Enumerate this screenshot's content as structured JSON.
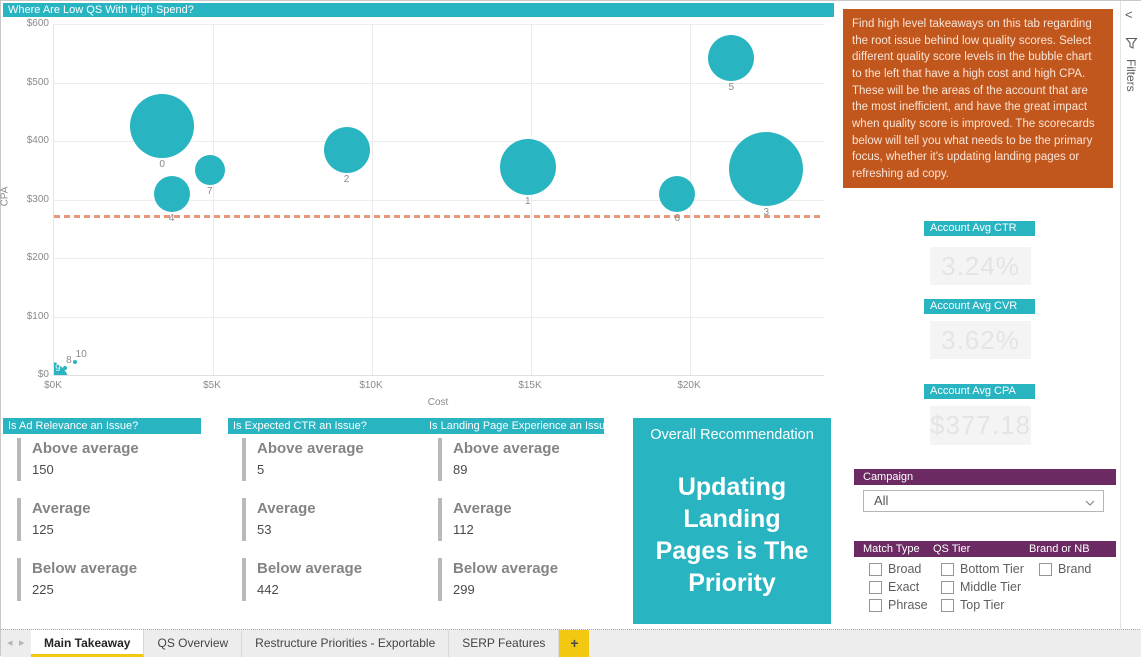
{
  "colors": {
    "teal": "#29b4c2",
    "orange": "#c2571e",
    "purple": "#6b2a61",
    "yellow": "#f2c811",
    "avg_line_salmon": "#e9977b"
  },
  "chart_data": {
    "type": "bubble",
    "title": "Where Are Low QS With High Spend?",
    "xlabel": "Cost",
    "ylabel": "CPA",
    "x_range_k": [
      0,
      24.2
    ],
    "y_range": [
      0,
      600
    ],
    "x_ticks": [
      {
        "v": 0,
        "label": "$0K"
      },
      {
        "v": 5,
        "label": "$5K"
      },
      {
        "v": 10,
        "label": "$10K"
      },
      {
        "v": 15,
        "label": "$15K"
      },
      {
        "v": 20,
        "label": "$20K"
      }
    ],
    "y_ticks": [
      {
        "v": 0,
        "label": "$0"
      },
      {
        "v": 100,
        "label": "$100"
      },
      {
        "v": 200,
        "label": "$200"
      },
      {
        "v": 300,
        "label": "$300"
      },
      {
        "v": 400,
        "label": "$400"
      },
      {
        "v": 500,
        "label": "$500"
      },
      {
        "v": 600,
        "label": "$600"
      }
    ],
    "avg_cpa_line": 273,
    "grid": true,
    "points": [
      {
        "qs": "0",
        "cost_k": 3.4,
        "cpa": 426,
        "r": 32
      },
      {
        "qs": "7",
        "cost_k": 4.9,
        "cpa": 350,
        "r": 15
      },
      {
        "qs": "4",
        "cost_k": 3.7,
        "cpa": 309,
        "r": 18
      },
      {
        "qs": "2",
        "cost_k": 9.2,
        "cpa": 385,
        "r": 23
      },
      {
        "qs": "1",
        "cost_k": 14.9,
        "cpa": 356,
        "r": 28
      },
      {
        "qs": "6",
        "cost_k": 19.6,
        "cpa": 309,
        "r": 18
      },
      {
        "qs": "3",
        "cost_k": 22.4,
        "cpa": 352,
        "r": 37
      },
      {
        "qs": "5",
        "cost_k": 21.3,
        "cpa": 542,
        "r": 23
      },
      {
        "qs": "9",
        "cost_k": 0.1,
        "cpa": 3,
        "r": 13,
        "label_inside": true,
        "quarter": true
      },
      {
        "qs": "8",
        "cost_k": 0.35,
        "cpa": 12,
        "r": 2,
        "label_pos": "right"
      },
      {
        "qs": "10",
        "cost_k": 0.65,
        "cpa": 22,
        "r": 2,
        "label_pos": "right"
      }
    ]
  },
  "info_box": {
    "text": "Find high level takeaways on this tab regarding the root issue behind low quality scores. Select different quality score levels in the bubble chart to the left that have a high cost and high CPA. These will be the areas of the account that are the most inefficient, and have the great impact when quality score is improved. The scorecards below will tell you what needs to be the primary focus, whether it's updating landing pages or refreshing ad copy."
  },
  "scorecards": [
    {
      "title": "Is Ad Relevance an Issue?",
      "rows": [
        {
          "label": "Above average",
          "value": "150"
        },
        {
          "label": "Average",
          "value": "125"
        },
        {
          "label": "Below average",
          "value": "225"
        }
      ]
    },
    {
      "title": "Is Expected CTR an Issue?",
      "rows": [
        {
          "label": "Above average",
          "value": "5"
        },
        {
          "label": "Average",
          "value": "53"
        },
        {
          "label": "Below average",
          "value": "442"
        }
      ]
    },
    {
      "title": "Is Landing Page Experience an Issue?",
      "rows": [
        {
          "label": "Above average",
          "value": "89"
        },
        {
          "label": "Average",
          "value": "112"
        },
        {
          "label": "Below average",
          "value": "299"
        }
      ]
    }
  ],
  "recommendation": {
    "title": "Overall Recommendation",
    "text": "Updating Landing Pages is The Priority"
  },
  "kpis": [
    {
      "title": "Account Avg CTR",
      "value": "3.24%"
    },
    {
      "title": "Account Avg CVR",
      "value": "3.62%"
    },
    {
      "title": "Account Avg CPA",
      "value": "$377.18"
    }
  ],
  "campaign": {
    "title": "Campaign",
    "selected": "All"
  },
  "slicer": {
    "columns": [
      {
        "title": "Match Type",
        "options": [
          "Broad",
          "Exact",
          "Phrase"
        ]
      },
      {
        "title": "QS Tier",
        "options": [
          "Bottom Tier",
          "Middle Tier",
          "Top Tier"
        ]
      },
      {
        "title": "Brand or NB",
        "options": [
          "Brand"
        ]
      }
    ]
  },
  "filters_pane": {
    "label": "Filters",
    "collapse_glyph": "<"
  },
  "tabs": {
    "nav_prev": "◂",
    "nav_next": "▸",
    "items": [
      {
        "label": "Main Takeaway",
        "active": true
      },
      {
        "label": "QS Overview",
        "active": false
      },
      {
        "label": "Restructure Priorities - Exportable",
        "active": false
      },
      {
        "label": "SERP Features",
        "active": false
      }
    ],
    "add_label": "+"
  }
}
